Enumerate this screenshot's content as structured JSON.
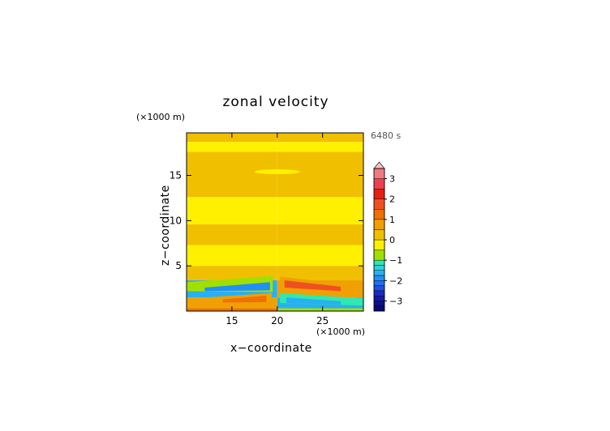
{
  "chart_data": {
    "type": "heatmap",
    "title": "zonal velocity",
    "xlabel": "x−coordinate",
    "ylabel": "z−coordinate",
    "x_multiplier": "(×1000 m)",
    "y_multiplier": "(×1000 m)",
    "time_label": "6480 s",
    "xlim": [
      10,
      29.5
    ],
    "ylim": [
      0,
      19.7
    ],
    "x_ticks": [
      {
        "v": 15,
        "label": "15"
      },
      {
        "v": 20,
        "label": "20"
      },
      {
        "v": 25,
        "label": "25"
      }
    ],
    "y_ticks": [
      {
        "v": 5,
        "label": "5"
      },
      {
        "v": 10,
        "label": "10"
      },
      {
        "v": 15,
        "label": "15"
      }
    ],
    "colorbar": {
      "levels": [
        -3.5,
        -3.25,
        -3,
        -2.75,
        -2.5,
        -2.25,
        -2,
        -1.75,
        -1.5,
        -1.25,
        -1,
        -0.5,
        0,
        0.5,
        1,
        1.5,
        2,
        2.5,
        3,
        3.5
      ],
      "colors": [
        "#0a0a70",
        "#10108a",
        "#1818a8",
        "#1c2cc8",
        "#2050e0",
        "#2070f0",
        "#2090f8",
        "#28b0f0",
        "#30d0e0",
        "#30e8b0",
        "#a0e000",
        "#fff000",
        "#f0c000",
        "#f0a000",
        "#f07000",
        "#f05020",
        "#e82010",
        "#f04050",
        "#f07a80"
      ],
      "over_color": "#f8c0c0",
      "tick_labels": [
        {
          "v": -3,
          "label": "−3"
        },
        {
          "v": -2,
          "label": "−2"
        },
        {
          "v": -1,
          "label": "−1"
        },
        {
          "v": 0,
          "label": "0"
        },
        {
          "v": 1,
          "label": "1"
        },
        {
          "v": 2,
          "label": "2"
        },
        {
          "v": 3,
          "label": "3"
        }
      ]
    },
    "field": {
      "description_bands_z": [
        {
          "z": [
            0,
            0.3
          ],
          "west": 1.4,
          "east": -0.8
        },
        {
          "z": [
            0.3,
            1.5
          ],
          "west": 0.6,
          "east": -1.6
        },
        {
          "z": [
            1.5,
            3.4
          ],
          "west": -1.7,
          "east": 0.8
        },
        {
          "z": [
            3.4,
            5.0
          ],
          "west": 0.2,
          "east": 0.3
        },
        {
          "z": [
            5.0,
            7.3
          ],
          "west": -0.2,
          "east": -0.2
        },
        {
          "z": [
            7.3,
            9.6
          ],
          "west": 0.2,
          "east": 0.2
        },
        {
          "z": [
            9.6,
            12.6
          ],
          "west": -0.2,
          "east": -0.2
        },
        {
          "z": [
            12.6,
            17.6
          ],
          "west": 0.2,
          "east": 0.2
        },
        {
          "z": [
            17.6,
            18.7
          ],
          "west": -0.2,
          "east": -0.2
        },
        {
          "z": [
            18.7,
            19.7
          ],
          "west": 0.2,
          "east": 0.2
        }
      ]
    }
  }
}
